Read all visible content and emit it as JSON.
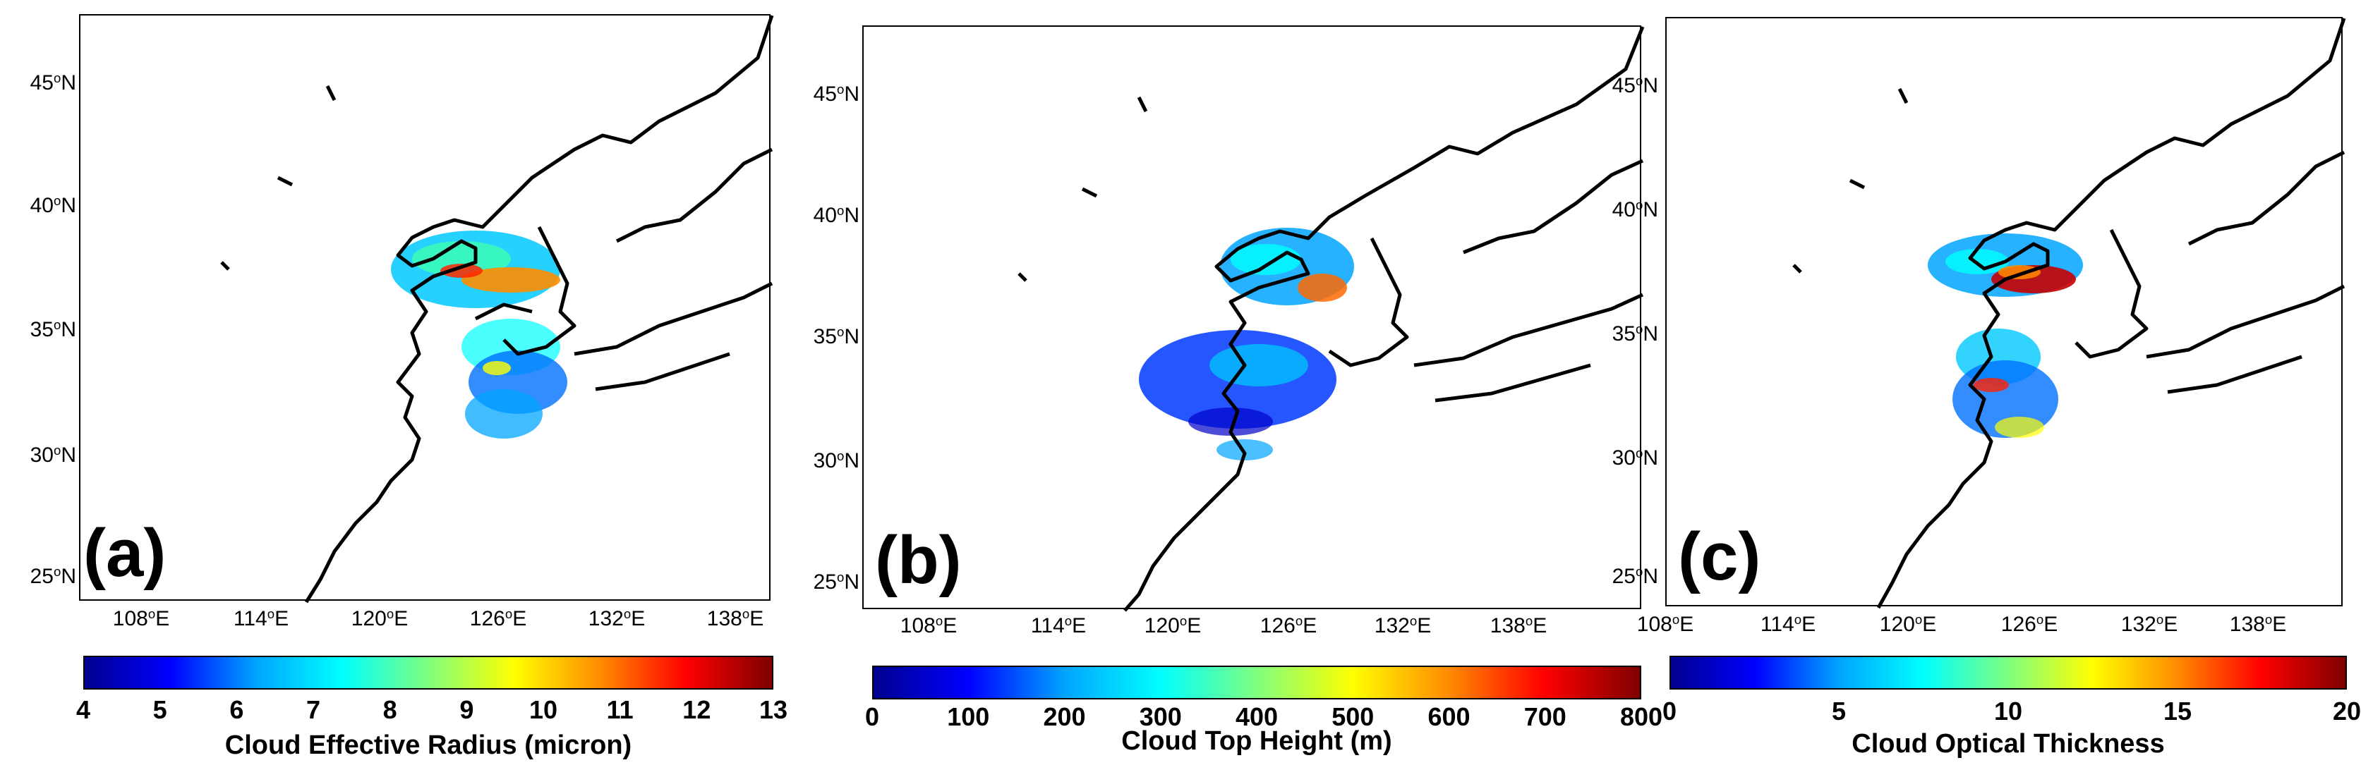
{
  "colormap": {
    "stops": [
      "#00008f",
      "#0000ff",
      "#00a5ff",
      "#00ffff",
      "#7fff7f",
      "#ffff00",
      "#ff8c00",
      "#ff0000",
      "#7f0000"
    ]
  },
  "panels": [
    {
      "id": "a",
      "letter": "(a)",
      "lat_labels": [
        "45",
        "40",
        "35",
        "30",
        "25"
      ],
      "lon_labels": [
        "108",
        "114",
        "120",
        "126",
        "132",
        "138"
      ],
      "lat_suffix": "N",
      "lon_suffix": "E",
      "colorbar": {
        "label": "Cloud Effective Radius (micron)",
        "ticks": [
          "4",
          "5",
          "6",
          "7",
          "8",
          "9",
          "10",
          "11",
          "12",
          "13"
        ],
        "min": 4,
        "max": 13
      }
    },
    {
      "id": "b",
      "letter": "(b)",
      "lat_labels": [
        "45",
        "40",
        "35",
        "30",
        "25"
      ],
      "lon_labels": [
        "108",
        "114",
        "120",
        "126",
        "132",
        "138"
      ],
      "lat_suffix": "N",
      "lon_suffix": "E",
      "colorbar": {
        "label": "Cloud Top Height (m)",
        "ticks": [
          "0",
          "100",
          "200",
          "300",
          "400",
          "500",
          "600",
          "700",
          "800"
        ],
        "min": 0,
        "max": 800
      }
    },
    {
      "id": "c",
      "letter": "(c)",
      "lat_labels": [
        "45",
        "40",
        "35",
        "30",
        "25"
      ],
      "lon_labels": [
        "108",
        "114",
        "120",
        "126",
        "132",
        "138"
      ],
      "lat_suffix": "N",
      "lon_suffix": "E",
      "colorbar": {
        "label": "Cloud Optical Thickness",
        "ticks": [
          "0",
          "5",
          "10",
          "15",
          "20"
        ],
        "min": 0,
        "max": 20
      }
    }
  ]
}
